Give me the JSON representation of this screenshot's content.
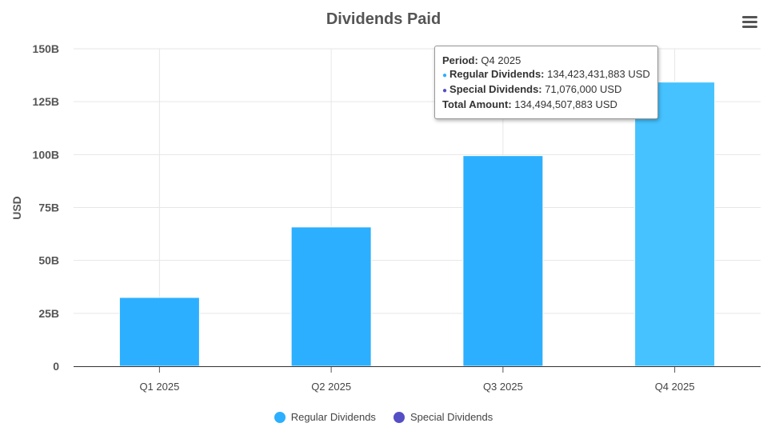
{
  "chart_data": {
    "type": "bar",
    "title": "Dividends Paid",
    "ylabel": "USD",
    "xlabel": "",
    "ylim": [
      0,
      150000000000
    ],
    "yticks": [
      "0",
      "25B",
      "50B",
      "75B",
      "100B",
      "125B",
      "150B"
    ],
    "categories": [
      "Q1 2025",
      "Q2 2025",
      "Q3 2025",
      "Q4 2025"
    ],
    "stacked": true,
    "legend_position": "bottom",
    "grid": true,
    "series": [
      {
        "name": "Regular Dividends",
        "color": "#2caffe",
        "values": [
          32500000000,
          65800000000,
          99500000000,
          134423431883
        ]
      },
      {
        "name": "Special Dividends",
        "color": "#544fc5",
        "values": [
          0,
          0,
          0,
          71076000
        ]
      }
    ],
    "highlight_index": 3,
    "highlight_color": "#45c2ff"
  },
  "tooltip": {
    "period_label": "Period:",
    "period_value": "Q4 2025",
    "regular_label": "Regular Dividends:",
    "regular_value": "134,423,431,883 USD",
    "special_label": "Special Dividends:",
    "special_value": "71,076,000 USD",
    "total_label": "Total Amount:",
    "total_value": "134,494,507,883 USD"
  },
  "menu_icon": "hamburger-icon"
}
